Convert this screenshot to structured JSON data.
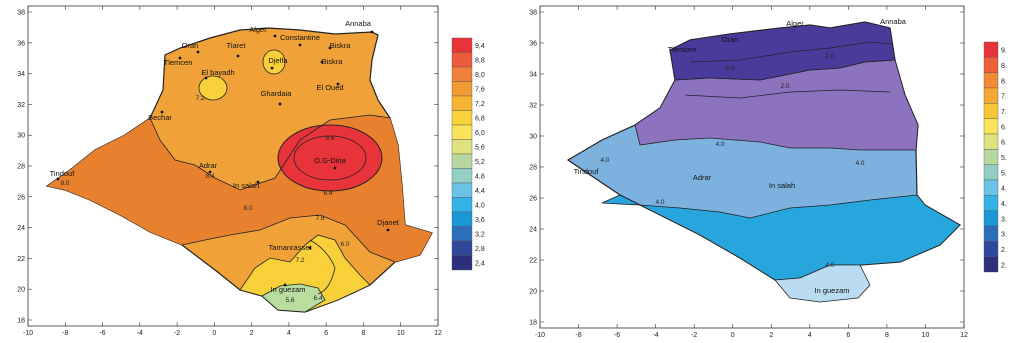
{
  "left_map": {
    "x_ticks": [
      "-10",
      "-8",
      "-6",
      "-4",
      "-2",
      "0",
      "2",
      "4",
      "6",
      "8",
      "10",
      "12"
    ],
    "y_ticks": [
      "38",
      "36",
      "34",
      "32",
      "30",
      "28",
      "26",
      "24",
      "22",
      "20",
      "18"
    ],
    "cities": [
      "Alger",
      "Annaba",
      "Oran",
      "Tiaret",
      "Constantine",
      "Biskra",
      "Tlemcen",
      "El bayadh",
      "Djelfa",
      "Biskra",
      "El Oued",
      "Ghardaia",
      "Bechar",
      "O.G-Dina",
      "Tindouf",
      "Adrar",
      "In salah",
      "Djanet",
      "Tamanrasset",
      "In guezam"
    ],
    "contour_labels": [
      "8.0",
      "7.2",
      "8.4",
      "8.6",
      "8.0",
      "6.4",
      "7.6",
      "6.0",
      "7.2",
      "5.6",
      "6.4"
    ],
    "legend": {
      "labels": [
        "9,4",
        "8,8",
        "8,0",
        "7,6",
        "7,2",
        "6,8",
        "6,0",
        "5,6",
        "5,2",
        "4,8",
        "4,4",
        "4,0",
        "3,6",
        "3,2",
        "2,8",
        "2,4"
      ],
      "colors": [
        "#e8333a",
        "#ed5a3c",
        "#f0803a",
        "#f49a34",
        "#f8b433",
        "#f8d23a",
        "#f8e35a",
        "#dfe27e",
        "#b7d9a0",
        "#93cfc3",
        "#6cc3e8",
        "#32b2e6",
        "#1a98d6",
        "#2b6fbb",
        "#30479e",
        "#2c2f7c"
      ]
    },
    "colors": {
      "red": "#e8333a",
      "orange_dark": "#e8812e",
      "orange": "#f0a238",
      "yellow": "#f8d03a",
      "green": "#b9dca0"
    }
  },
  "right_map": {
    "x_ticks": [
      "-10",
      "-8",
      "-6",
      "-4",
      "-2",
      "0",
      "2",
      "4",
      "6",
      "8",
      "10",
      "12"
    ],
    "y_ticks": [
      "38",
      "36",
      "34",
      "32",
      "30",
      "28",
      "26",
      "24",
      "22",
      "20",
      "18"
    ],
    "cities": [
      "Alger",
      "Annaba",
      "Oran",
      "Tlemcen",
      "Tindouf",
      "Adrar",
      "In salah",
      "In guezam"
    ],
    "contour_labels": [
      "2.0",
      "2.0",
      "2.0",
      "4.0",
      "4.0",
      "4.0",
      "4.0",
      "4.0"
    ],
    "legend": {
      "labels": [
        "9.",
        "8.",
        "8.",
        "7.",
        "7.",
        "6.",
        "6.",
        "5.",
        "5.",
        "4.",
        "4.",
        "3.",
        "3.",
        "2.",
        "2."
      ],
      "colors": [
        "#e8333a",
        "#ef6038",
        "#f28a36",
        "#f5a833",
        "#f8c734",
        "#f8e35a",
        "#dfe27e",
        "#b7d9a0",
        "#93cfc3",
        "#6cc3e8",
        "#32b2e6",
        "#1a98d6",
        "#2b6fbb",
        "#30479e",
        "#2c2f7c"
      ]
    },
    "colors": {
      "purple_dark": "#4a3a99",
      "purple": "#8c72bf",
      "blue_light": "#7db2df",
      "blue": "#27a6dd",
      "blue_pale": "#b9dcf2"
    }
  }
}
